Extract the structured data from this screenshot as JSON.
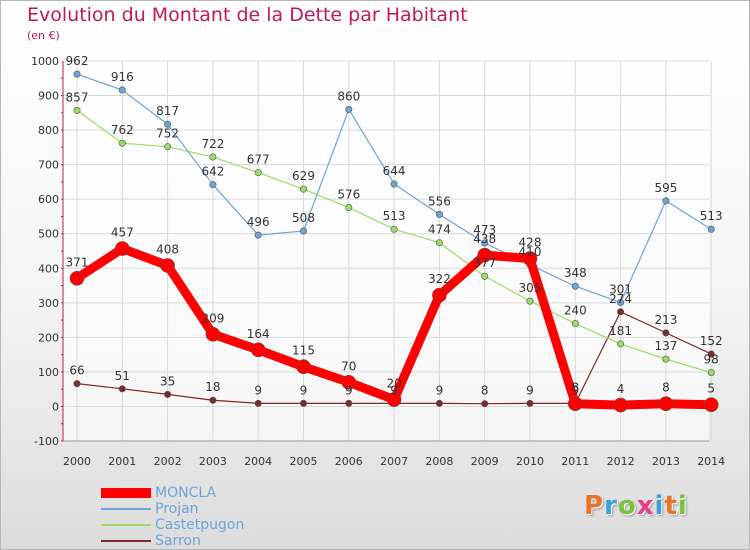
{
  "title": "Evolution du Montant de la Dette par Habitant",
  "unit": "(en €)",
  "logo_text": "Proxiti",
  "chart_data": {
    "type": "line",
    "title": "Evolution du Montant de la Dette par Habitant",
    "subtitle": "(en €)",
    "x": [
      "2000",
      "2001",
      "2002",
      "2003",
      "2004",
      "2005",
      "2006",
      "2007",
      "2008",
      "2009",
      "2010",
      "2011",
      "2012",
      "2013",
      "2014"
    ],
    "ylim": [
      -100,
      1000
    ],
    "yticks": [
      "-100",
      "0",
      "100",
      "200",
      "300",
      "400",
      "500",
      "600",
      "700",
      "800",
      "900",
      "1000"
    ],
    "grid": true,
    "legend_position": "bottom-left",
    "series": [
      {
        "name": "MONCLA",
        "color": "#ff0000",
        "values": [
          371,
          457,
          408,
          209,
          164,
          115,
          70,
          20,
          322,
          438,
          428,
          8,
          4,
          8,
          5
        ],
        "labels": [
          "371",
          "457",
          "408",
          "209",
          "164",
          "115",
          "70",
          "20",
          "322",
          "438",
          "428",
          "8",
          "4",
          "8",
          "5"
        ]
      },
      {
        "name": "Projan",
        "color": "#6ea4d8",
        "values": [
          962,
          916,
          817,
          642,
          496,
          508,
          860,
          644,
          556,
          473,
          410,
          348,
          301,
          595,
          513
        ],
        "labels": [
          "962",
          "916",
          "817",
          "642",
          "496",
          "508",
          "860",
          "644",
          "556",
          "473",
          "410",
          "348",
          "301",
          "595",
          "513"
        ]
      },
      {
        "name": "Castetpugon",
        "color": "#99dd66",
        "values": [
          857,
          762,
          752,
          722,
          677,
          629,
          576,
          513,
          474,
          377,
          305,
          240,
          181,
          137,
          98
        ],
        "labels": [
          "857",
          "762",
          "752",
          "722",
          "677",
          "629",
          "576",
          "513",
          "474",
          "377",
          "305",
          "240",
          "181",
          "137",
          "98"
        ]
      },
      {
        "name": "Sarron",
        "color": "#7f2a2a",
        "values": [
          66,
          51,
          35,
          18,
          9,
          9,
          9,
          9,
          9,
          8,
          9,
          9,
          274,
          213,
          152
        ],
        "labels": [
          "66",
          "51",
          "35",
          "18",
          "9",
          "9",
          "9",
          "9",
          "9",
          "8",
          "9",
          "9",
          "274",
          "213",
          "152"
        ]
      }
    ]
  }
}
